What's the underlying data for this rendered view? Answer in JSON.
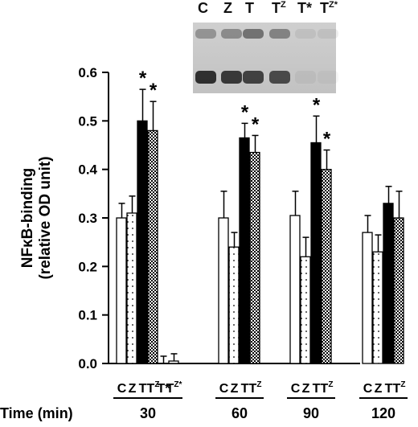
{
  "blot": {
    "lanes": [
      {
        "label": "C",
        "sup": ""
      },
      {
        "label": "Z",
        "sup": ""
      },
      {
        "label": "T",
        "sup": ""
      },
      {
        "label": "T",
        "sup": "Z"
      },
      {
        "label": "T*",
        "sup": ""
      },
      {
        "label": "T",
        "sup": "Z*"
      }
    ]
  },
  "chart_data": {
    "type": "bar",
    "ylabel_line1": "NFκB-binding",
    "ylabel_line2": "(relative OD unit)",
    "ylim": [
      0,
      0.6
    ],
    "yticks": [
      "0.0",
      "0.1",
      "0.2",
      "0.3",
      "0.4",
      "0.5",
      "0.6"
    ],
    "xlabel": "Time (min)",
    "significance_marker": "*",
    "groups": [
      {
        "time": "30",
        "bars": [
          {
            "code": "C",
            "sup": "",
            "value": 0.3,
            "err": 0.03,
            "fill": "open",
            "sig": false
          },
          {
            "code": "Z",
            "sup": "",
            "value": 0.31,
            "err": 0.035,
            "fill": "dotted",
            "sig": false
          },
          {
            "code": "T",
            "sup": "",
            "value": 0.5,
            "err": 0.065,
            "fill": "solid",
            "sig": true
          },
          {
            "code": "T",
            "sup": "Z",
            "value": 0.48,
            "err": 0.06,
            "fill": "checker",
            "sig": true
          },
          {
            "code": "T*",
            "sup": "",
            "value": 0.0,
            "err": 0.015,
            "fill": "open",
            "sig": false
          },
          {
            "code": "T",
            "sup": "Z*",
            "value": 0.005,
            "err": 0.015,
            "fill": "open",
            "sig": false
          }
        ]
      },
      {
        "time": "60",
        "bars": [
          {
            "code": "C",
            "sup": "",
            "value": 0.3,
            "err": 0.055,
            "fill": "open",
            "sig": false
          },
          {
            "code": "Z",
            "sup": "",
            "value": 0.24,
            "err": 0.03,
            "fill": "dotted",
            "sig": false
          },
          {
            "code": "T",
            "sup": "",
            "value": 0.465,
            "err": 0.03,
            "fill": "solid",
            "sig": true
          },
          {
            "code": "T",
            "sup": "Z",
            "value": 0.435,
            "err": 0.035,
            "fill": "checker",
            "sig": true
          }
        ]
      },
      {
        "time": "90",
        "bars": [
          {
            "code": "C",
            "sup": "",
            "value": 0.305,
            "err": 0.05,
            "fill": "open",
            "sig": false
          },
          {
            "code": "Z",
            "sup": "",
            "value": 0.22,
            "err": 0.04,
            "fill": "dotted",
            "sig": false
          },
          {
            "code": "T",
            "sup": "",
            "value": 0.455,
            "err": 0.055,
            "fill": "solid",
            "sig": true
          },
          {
            "code": "T",
            "sup": "Z",
            "value": 0.4,
            "err": 0.04,
            "fill": "checker",
            "sig": true
          }
        ]
      },
      {
        "time": "120",
        "bars": [
          {
            "code": "C",
            "sup": "",
            "value": 0.27,
            "err": 0.035,
            "fill": "open",
            "sig": false
          },
          {
            "code": "Z",
            "sup": "",
            "value": 0.23,
            "err": 0.035,
            "fill": "dotted",
            "sig": false
          },
          {
            "code": "T",
            "sup": "",
            "value": 0.33,
            "err": 0.035,
            "fill": "solid",
            "sig": false
          },
          {
            "code": "T",
            "sup": "Z",
            "value": 0.3,
            "err": 0.055,
            "fill": "checker",
            "sig": false
          }
        ]
      }
    ]
  }
}
